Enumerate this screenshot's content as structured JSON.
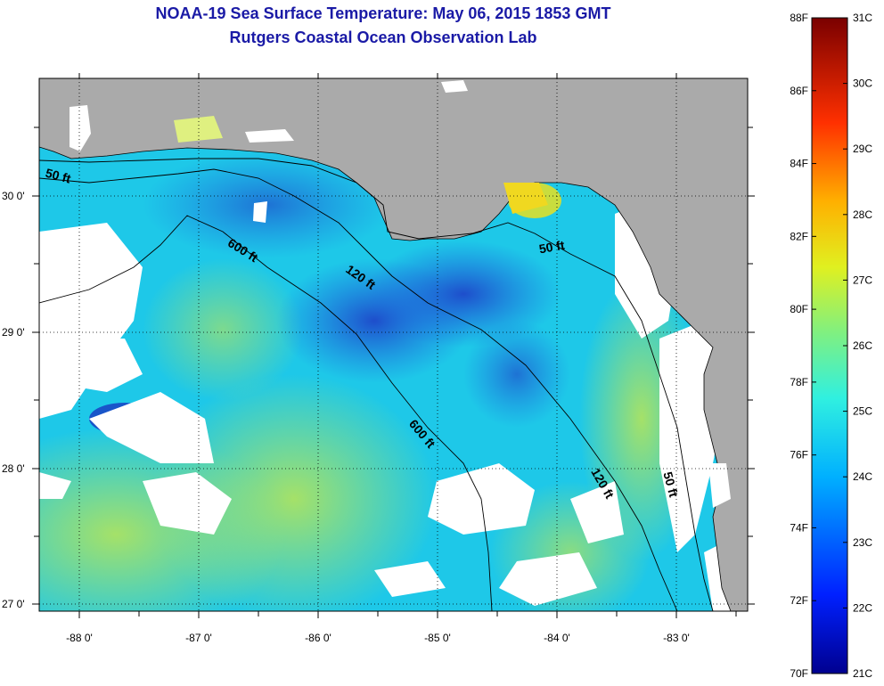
{
  "title_line1": "NOAA-19 Sea Surface Temperature:  May 06, 2015 1853 GMT",
  "title_line2": "Rutgers Coastal Ocean Observation Lab",
  "lat_labels": [
    "30 0'",
    "29 0'",
    "28 0'",
    "27 0'"
  ],
  "lon_labels": [
    "-88 0'",
    "-87 0'",
    "-86 0'",
    "-85 0'",
    "-84 0'",
    "-83 0'"
  ],
  "colorbar": {
    "f_labels": [
      "88F",
      "86F",
      "84F",
      "82F",
      "80F",
      "78F",
      "76F",
      "74F",
      "72F",
      "70F"
    ],
    "c_labels": [
      "31C",
      "30C",
      "29C",
      "28C",
      "27C",
      "26C",
      "25C",
      "24C",
      "23C",
      "22C",
      "21C"
    ]
  },
  "contours": {
    "label_600": "600 ft",
    "label_120": "120 ft",
    "label_50": "50 ft"
  },
  "colors": {
    "land": "#aaaaaa",
    "cloud": "#ffffff",
    "ocean_main": "#1ec8e8",
    "ocean_deep": "#2060d8",
    "ocean_warm": "#a6e060",
    "title": "#1a1aa6"
  }
}
